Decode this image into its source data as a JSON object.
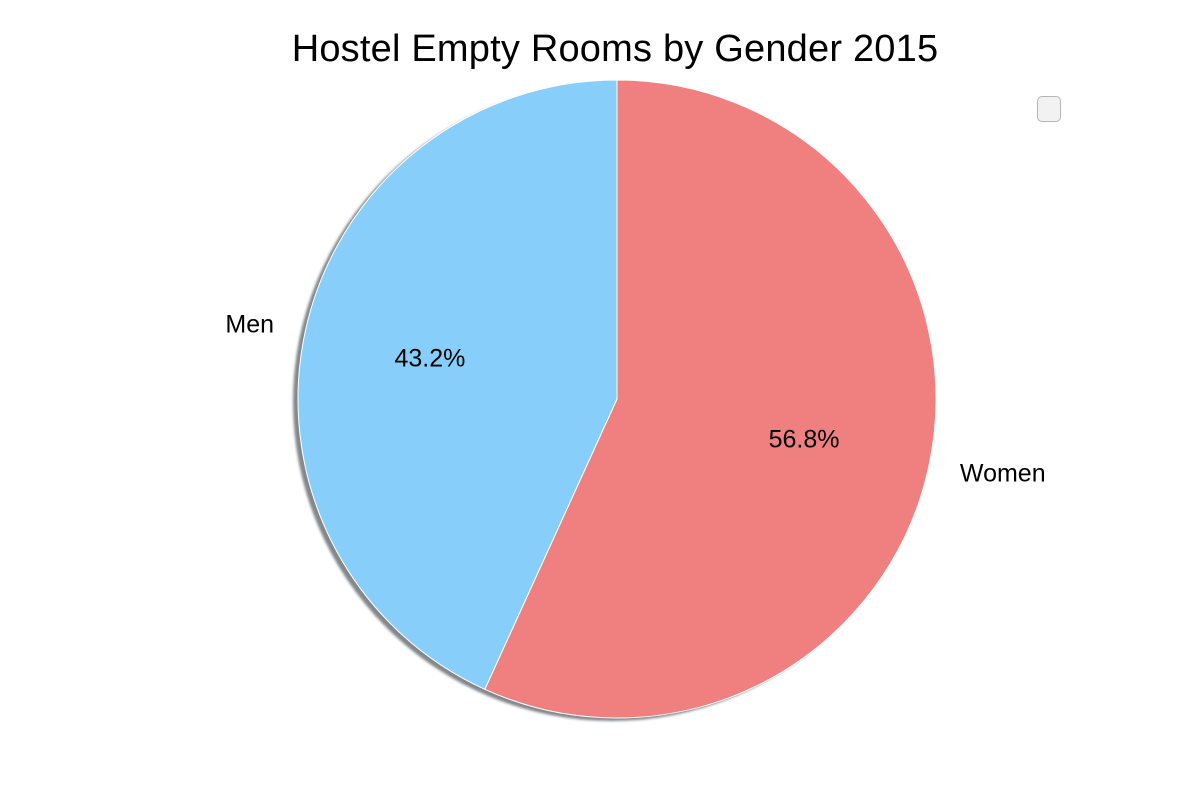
{
  "chart_data": {
    "type": "pie",
    "title": "Hostel Empty Rooms by Gender 2015",
    "slices": [
      {
        "label": "Women",
        "pct_label": "56.8%",
        "value": 56.8,
        "color": "#f08080"
      },
      {
        "label": "Men",
        "pct_label": "43.2%",
        "value": 43.2,
        "color": "#87cefa"
      }
    ],
    "start_angle_deg": 90,
    "direction": "clockwise",
    "shadow": true,
    "legend": {
      "position": "top-right",
      "entries": []
    }
  }
}
